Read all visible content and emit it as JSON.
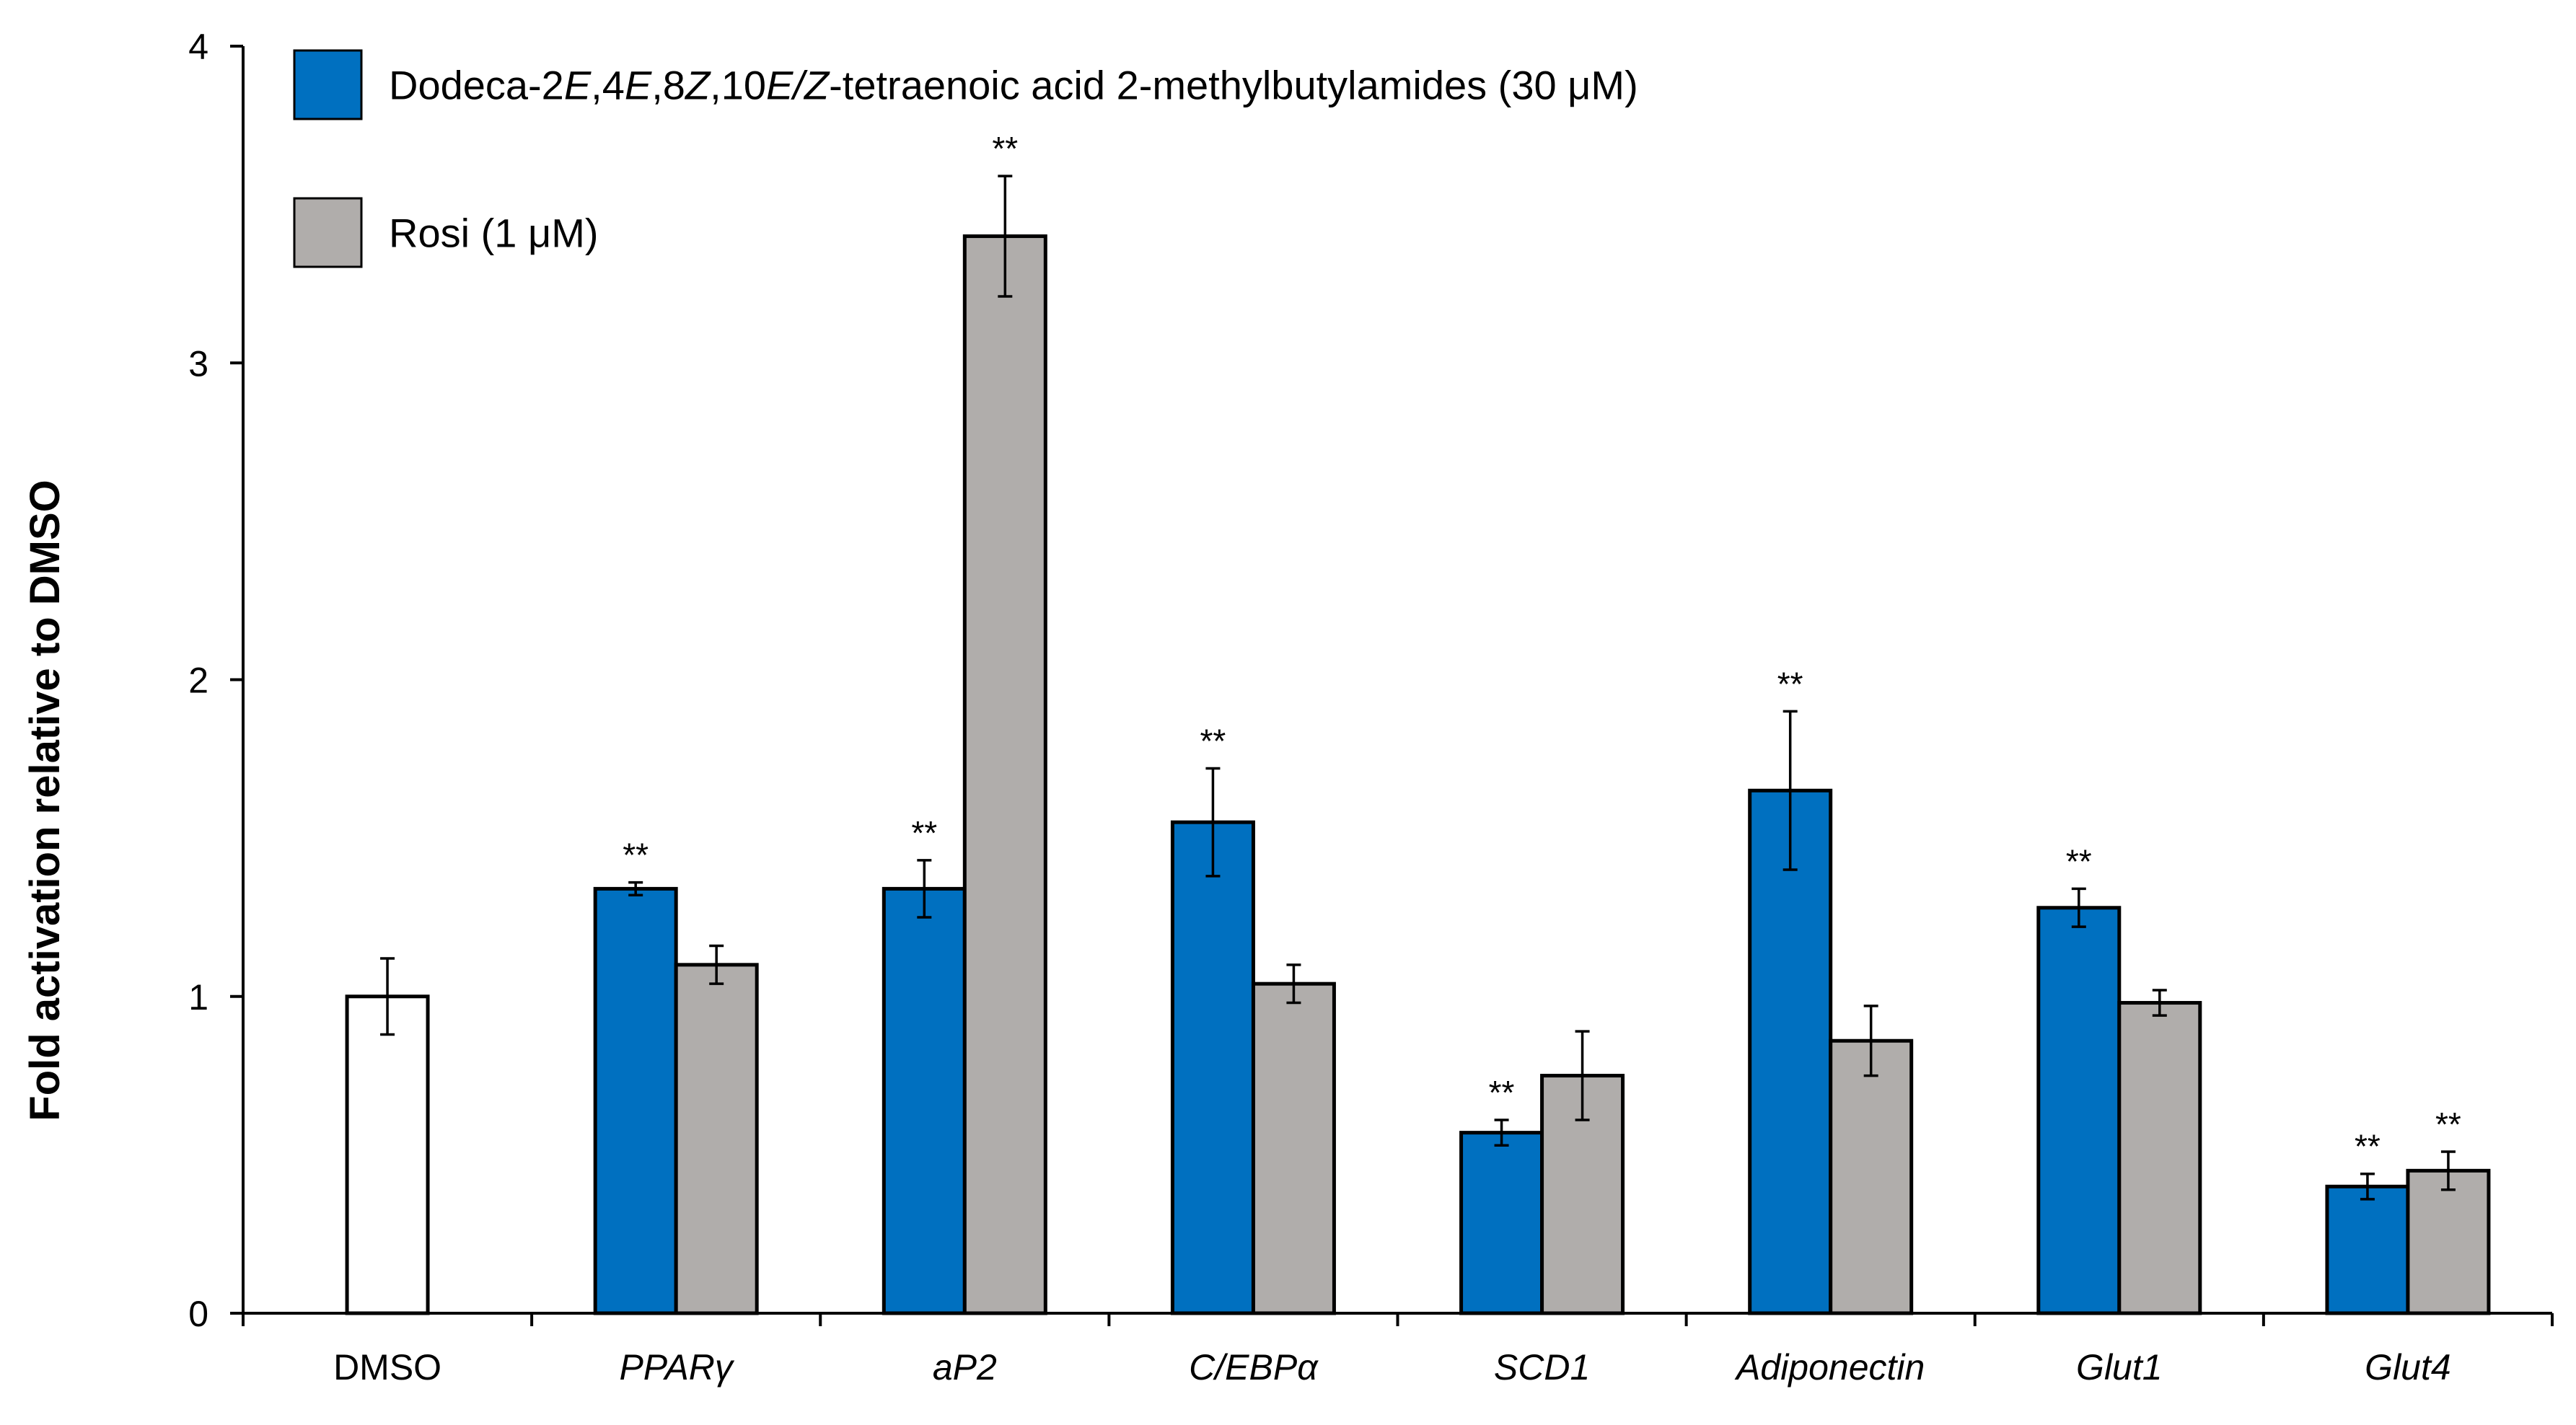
{
  "chart_data": {
    "type": "bar",
    "title": "",
    "xlabel": "",
    "ylabel": "Fold activation relative to DMSO",
    "ylim": [
      0,
      4
    ],
    "yticks": [
      0,
      1,
      2,
      3,
      4
    ],
    "grid": false,
    "legend_position": "top-left",
    "legend": [
      {
        "key": "dodeca",
        "parts": [
          {
            "t": "Dodeca-2",
            "i": false
          },
          {
            "t": "E",
            "i": true
          },
          {
            "t": ",4",
            "i": false
          },
          {
            "t": "E",
            "i": true
          },
          {
            "t": ",8",
            "i": false
          },
          {
            "t": "Z",
            "i": true
          },
          {
            "t": ",10",
            "i": false
          },
          {
            "t": "E/Z",
            "i": true
          },
          {
            "t": "-tetraenoic acid 2-methylbutylamides (30 μM)",
            "i": false
          }
        ],
        "color": "#0070c0"
      },
      {
        "key": "rosi",
        "parts": [
          {
            "t": "Rosi (1 μM)",
            "i": false
          }
        ],
        "color": "#b0adab"
      }
    ],
    "control": {
      "name": "DMSO",
      "category": "DMSO",
      "value": 1.0,
      "error": 0.12,
      "color": "#ffffff"
    },
    "categories": [
      "DMSO",
      "PPARγ",
      "aP2",
      "C/EBPα",
      "SCD1",
      "Adiponectin",
      "Glut1",
      "Glut4"
    ],
    "italic_categories": [
      false,
      true,
      true,
      true,
      true,
      true,
      true,
      true
    ],
    "series": [
      {
        "name": "Dodeca-2E,4E,8Z,10E/Z-tetraenoic acid 2-methylbutylamides (30 μM)",
        "color": "#0070c0",
        "values": [
          null,
          1.34,
          1.34,
          1.55,
          0.57,
          1.65,
          1.28,
          0.4
        ],
        "errors": [
          null,
          0.02,
          0.09,
          0.17,
          0.04,
          0.25,
          0.06,
          0.04
        ],
        "significance": [
          null,
          "**",
          "**",
          "**",
          "**",
          "**",
          "**",
          "**"
        ]
      },
      {
        "name": "Rosi (1 μM)",
        "color": "#b0adab",
        "values": [
          null,
          1.1,
          3.4,
          1.04,
          0.75,
          0.86,
          0.98,
          0.45
        ],
        "errors": [
          null,
          0.06,
          0.19,
          0.06,
          0.14,
          0.11,
          0.04,
          0.06
        ],
        "significance": [
          null,
          "",
          "**",
          "",
          "",
          "",
          "",
          "**"
        ]
      }
    ]
  }
}
